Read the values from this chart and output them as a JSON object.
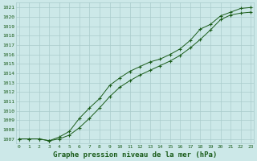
{
  "xlabel": "Graphe pression niveau de la mer (hPa)",
  "x": [
    0,
    1,
    2,
    3,
    4,
    5,
    6,
    7,
    8,
    9,
    10,
    11,
    12,
    13,
    14,
    15,
    16,
    17,
    18,
    19,
    20,
    21,
    22,
    23
  ],
  "line1": [
    1007.0,
    1007.0,
    1007.0,
    1006.8,
    1007.0,
    1007.4,
    1008.2,
    1009.2,
    1010.3,
    1011.5,
    1012.5,
    1013.2,
    1013.8,
    1014.3,
    1014.8,
    1015.3,
    1015.9,
    1016.7,
    1017.6,
    1018.6,
    1019.7,
    1020.2,
    1020.4,
    1020.5
  ],
  "line2": [
    1007.0,
    1007.0,
    1007.0,
    1006.8,
    1007.2,
    1007.8,
    1009.2,
    1010.3,
    1011.3,
    1012.7,
    1013.5,
    1014.2,
    1014.7,
    1015.2,
    1015.5,
    1016.0,
    1016.6,
    1017.5,
    1018.7,
    1019.2,
    1020.1,
    1020.5,
    1020.9,
    1021.0
  ],
  "bg_color": "#cce8e8",
  "grid_color": "#aacccc",
  "line_color": "#1a5c1a",
  "marker": "+",
  "ylim": [
    1006.5,
    1021.5
  ],
  "yticks": [
    1007,
    1008,
    1009,
    1010,
    1011,
    1012,
    1013,
    1014,
    1015,
    1016,
    1017,
    1018,
    1019,
    1020,
    1021
  ],
  "xticks": [
    0,
    1,
    2,
    3,
    4,
    5,
    6,
    7,
    8,
    9,
    10,
    11,
    12,
    13,
    14,
    15,
    16,
    17,
    18,
    19,
    20,
    21,
    22,
    23
  ],
  "tick_fontsize": 4.5,
  "xlabel_fontsize": 6.5,
  "figwidth": 3.2,
  "figheight": 2.0,
  "dpi": 100
}
